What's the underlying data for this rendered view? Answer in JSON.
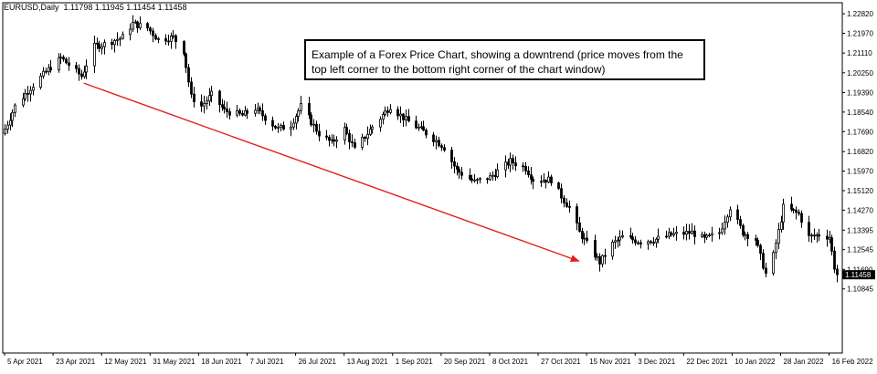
{
  "window": {
    "symbol_label": "EURUSD,Daily",
    "ohlc_values": "1.11798 1.11945 1.11454 1.11458"
  },
  "annotation": {
    "text": "Example of a Forex Price Chart, showing a downtrend (price moves from the top left corner to the bottom right corner of the chart window)"
  },
  "colors": {
    "background": "#ffffff",
    "candles": "#000000",
    "arrow": "#e02020",
    "price_tag": "#000000"
  },
  "chart_data": {
    "type": "candlestick",
    "symbol": "EURUSD",
    "timeframe": "Daily",
    "title": "EURUSD,Daily",
    "xlabel": "",
    "ylabel": "",
    "grid": false,
    "ylim": [
      1.0805,
      1.233
    ],
    "y_ticks": [
      1.2282,
      1.2197,
      1.2111,
      1.2025,
      1.1939,
      1.1854,
      1.1769,
      1.1682,
      1.1597,
      1.1512,
      1.1427,
      1.134,
      1.1255,
      1.1169,
      1.1084
    ],
    "y_tick_labels": [
      "1.22820",
      "1.21970",
      "1.21110",
      "1.20250",
      "1.19390",
      "1.18540",
      "1.17690",
      "1.16820",
      "1.15970",
      "1.15120",
      "1.14270",
      "1.13395",
      "1.12545",
      "1.11690",
      "1.10845"
    ],
    "x_tick_labels": [
      "5 Apr 2021",
      "23 Apr 2021",
      "12 May 2021",
      "31 May 2021",
      "18 Jun 2021",
      "7 Jul 2021",
      "26 Jul 2021",
      "13 Aug 2021",
      "1 Sep 2021",
      "20 Sep 2021",
      "8 Oct 2021",
      "27 Oct 2021",
      "15 Nov 2021",
      "3 Dec 2021",
      "22 Dec 2021",
      "10 Jan 2022",
      "28 Jan 2022",
      "16 Feb 2022"
    ],
    "x_range": [
      "2021-04-05",
      "2022-02-25"
    ],
    "close_anchors": [
      [
        "2021-04-05",
        1.178
      ],
      [
        "2021-04-09",
        1.188
      ],
      [
        "2021-04-15",
        1.196
      ],
      [
        "2021-04-22",
        1.204
      ],
      [
        "2021-04-27",
        1.209
      ],
      [
        "2021-05-05",
        1.201
      ],
      [
        "2021-05-10",
        1.214
      ],
      [
        "2021-05-14",
        1.215
      ],
      [
        "2021-05-21",
        1.218
      ],
      [
        "2021-05-25",
        1.224
      ],
      [
        "2021-05-31",
        1.222
      ],
      [
        "2021-06-04",
        1.217
      ],
      [
        "2021-06-10",
        1.218
      ],
      [
        "2021-06-14",
        1.212
      ],
      [
        "2021-06-17",
        1.192
      ],
      [
        "2021-06-21",
        1.188
      ],
      [
        "2021-06-25",
        1.193
      ],
      [
        "2021-06-30",
        1.186
      ],
      [
        "2021-07-07",
        1.184
      ],
      [
        "2021-07-12",
        1.187
      ],
      [
        "2021-07-21",
        1.178
      ],
      [
        "2021-07-26",
        1.18
      ],
      [
        "2021-07-30",
        1.188
      ],
      [
        "2021-08-06",
        1.176
      ],
      [
        "2021-08-11",
        1.172
      ],
      [
        "2021-08-16",
        1.178
      ],
      [
        "2021-08-20",
        1.169
      ],
      [
        "2021-08-27",
        1.179
      ],
      [
        "2021-09-03",
        1.188
      ],
      [
        "2021-09-09",
        1.182
      ],
      [
        "2021-09-16",
        1.177
      ],
      [
        "2021-09-21",
        1.173
      ],
      [
        "2021-09-24",
        1.17
      ],
      [
        "2021-09-29",
        1.16
      ],
      [
        "2021-10-06",
        1.155
      ],
      [
        "2021-10-12",
        1.157
      ],
      [
        "2021-10-20",
        1.164
      ],
      [
        "2021-10-26",
        1.161
      ],
      [
        "2021-10-29",
        1.156
      ],
      [
        "2021-11-05",
        1.156
      ],
      [
        "2021-11-10",
        1.147
      ],
      [
        "2021-11-12",
        1.144
      ],
      [
        "2021-11-16",
        1.133
      ],
      [
        "2021-11-24",
        1.12
      ],
      [
        "2021-11-29",
        1.128
      ],
      [
        "2021-12-03",
        1.131
      ],
      [
        "2021-12-10",
        1.129
      ],
      [
        "2021-12-16",
        1.13
      ],
      [
        "2021-12-22",
        1.132
      ],
      [
        "2021-12-30",
        1.133
      ],
      [
        "2022-01-04",
        1.13
      ],
      [
        "2022-01-10",
        1.133
      ],
      [
        "2022-01-14",
        1.144
      ],
      [
        "2022-01-19",
        1.133
      ],
      [
        "2022-01-24",
        1.13
      ],
      [
        "2022-01-28",
        1.115
      ],
      [
        "2022-01-31",
        1.123
      ],
      [
        "2022-02-04",
        1.144
      ],
      [
        "2022-02-08",
        1.142
      ],
      [
        "2022-02-10",
        1.141
      ],
      [
        "2022-02-14",
        1.131
      ],
      [
        "2022-02-18",
        1.132
      ],
      [
        "2022-02-22",
        1.131
      ],
      [
        "2022-02-24",
        1.118
      ],
      [
        "2022-02-25",
        1.1146
      ]
    ],
    "last_price": "1.11458",
    "annotations": [
      {
        "type": "arrow",
        "from": [
          "2021-05-06",
          1.198
        ],
        "to": [
          "2021-11-16",
          1.1205
        ]
      }
    ]
  }
}
